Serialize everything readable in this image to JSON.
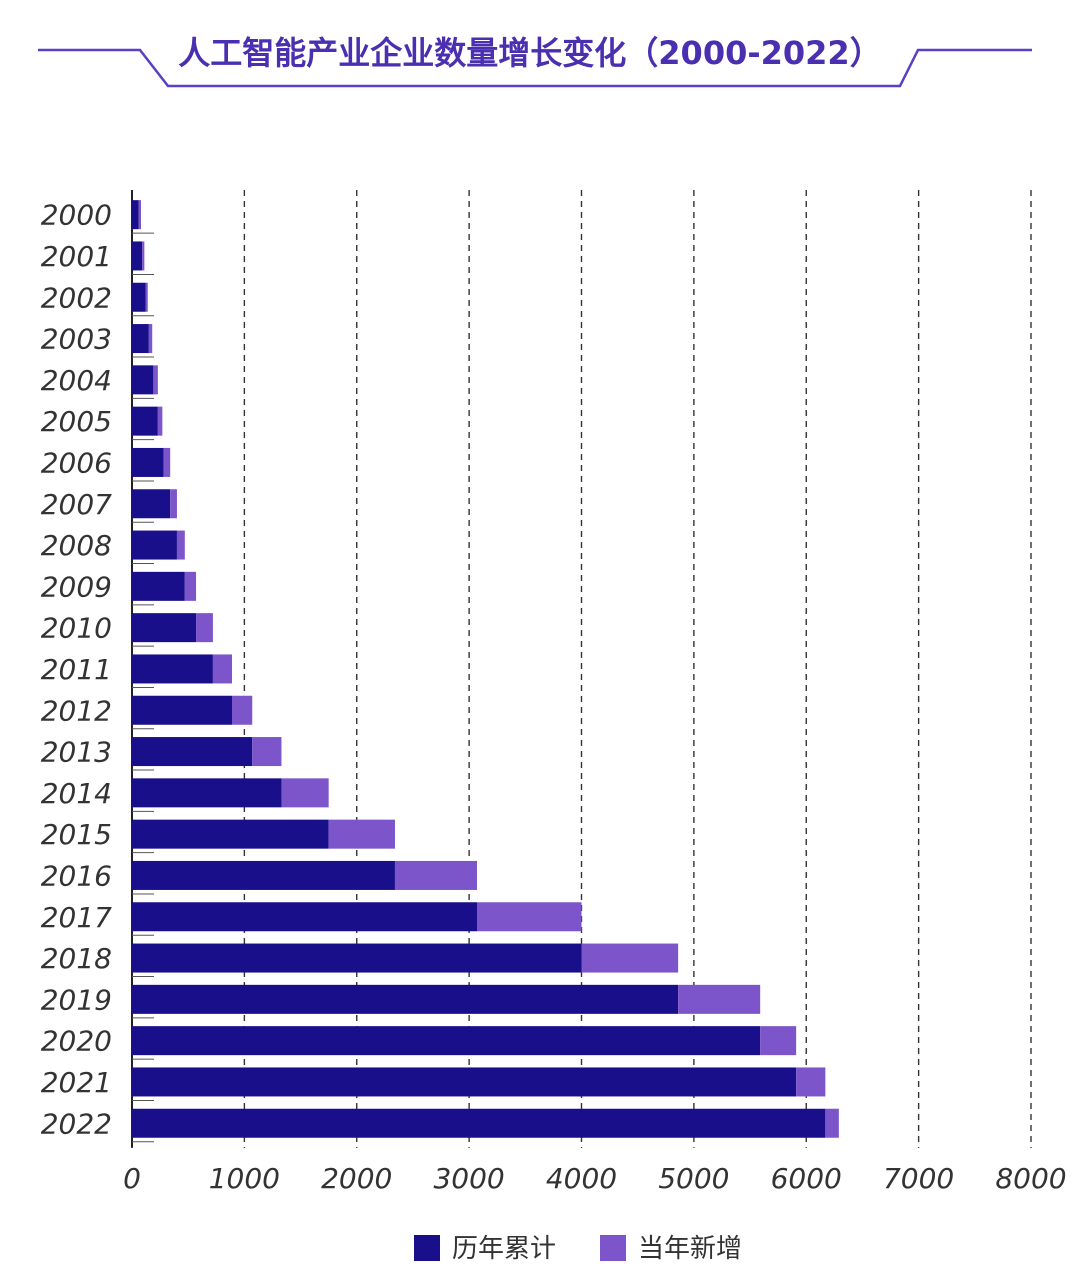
{
  "chart_data": {
    "type": "bar",
    "orientation": "horizontal",
    "stacked": true,
    "title": "人工智能产业企业数量增长变化（2000-2022）",
    "categories": [
      "2000",
      "2001",
      "2002",
      "2003",
      "2004",
      "2005",
      "2006",
      "2007",
      "2008",
      "2009",
      "2010",
      "2011",
      "2012",
      "2013",
      "2014",
      "2015",
      "2016",
      "2017",
      "2018",
      "2019",
      "2020",
      "2021",
      "2022"
    ],
    "series": [
      {
        "name": "历年累计",
        "color": "#1a0f8a",
        "values": [
          60,
          90,
          120,
          150,
          190,
          230,
          280,
          340,
          400,
          470,
          570,
          720,
          890,
          1070,
          1330,
          1750,
          2340,
          3070,
          4000,
          4860,
          5590,
          5910,
          6170
        ]
      },
      {
        "name": "当年新增",
        "color": "#7b55c9",
        "values": [
          20,
          20,
          20,
          30,
          40,
          40,
          60,
          60,
          70,
          100,
          150,
          170,
          180,
          260,
          420,
          590,
          730,
          930,
          860,
          730,
          320,
          260,
          120
        ]
      }
    ],
    "xlim": [
      0,
      8000
    ],
    "xticks": [
      "0",
      "1000",
      "2000",
      "3000",
      "4000",
      "5000",
      "6000",
      "7000",
      "8000"
    ],
    "grid": "vertical dashed",
    "legend_position": "bottom"
  }
}
